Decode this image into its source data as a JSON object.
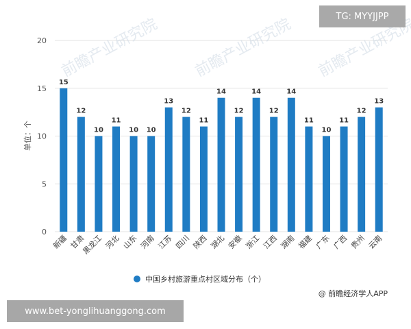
{
  "chart_data": {
    "type": "bar",
    "categories": [
      "新疆",
      "甘肃",
      "黑龙江",
      "河北",
      "山东",
      "河南",
      "江苏",
      "四川",
      "陕西",
      "湖北",
      "安徽",
      "浙江",
      "江西",
      "湖南",
      "福建",
      "广东",
      "广西",
      "贵州",
      "云南"
    ],
    "series": [
      {
        "name": "中国乡村旅游重点村区域分布（个）",
        "values": [
          15,
          12,
          10,
          11,
          10,
          10,
          13,
          12,
          11,
          14,
          12,
          14,
          12,
          14,
          11,
          10,
          11,
          12,
          13
        ],
        "color": "#1f7cc4"
      }
    ],
    "ylabel": "单位：个",
    "ylim": [
      0,
      20
    ],
    "yticks": [
      0,
      5,
      10,
      15,
      20
    ],
    "grid": true,
    "legend_position": "bottom-center",
    "data_labels": true
  },
  "source_note": "@ 前瞻经济学人APP",
  "overlay_tag": "TG: MYYJJPP",
  "overlay_url": "www.bet-yonglihuanggong.com",
  "watermark": "前瞻产业研究院"
}
